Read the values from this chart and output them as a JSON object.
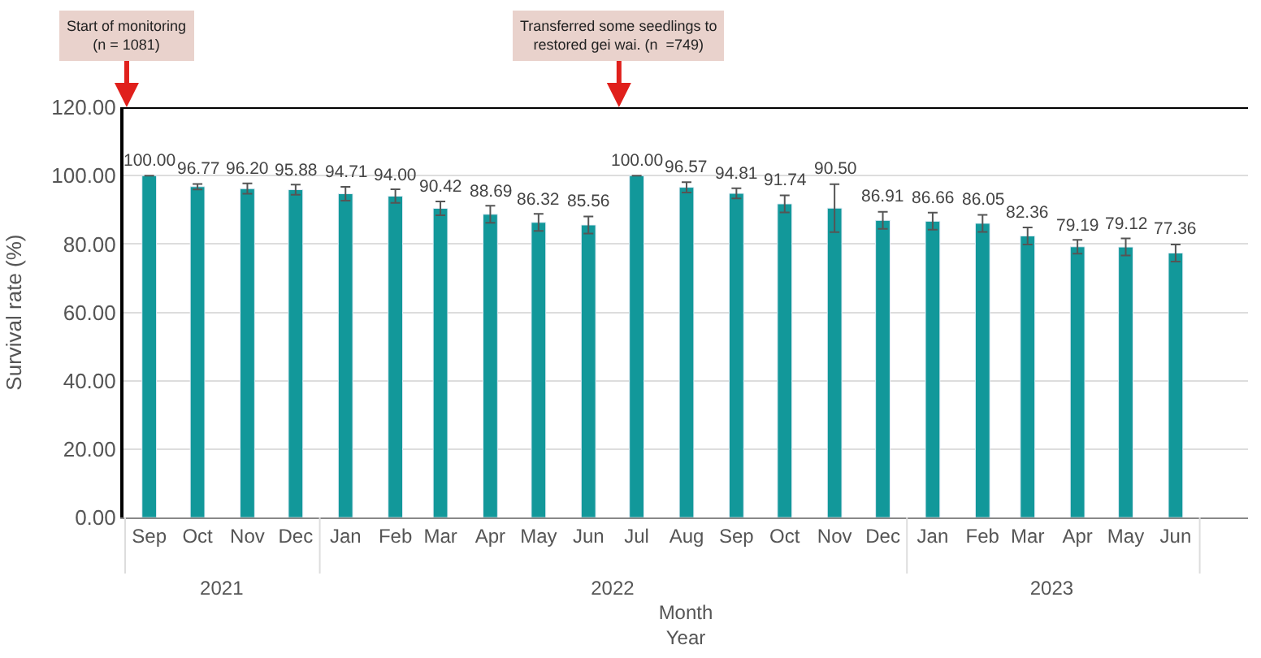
{
  "chart_data": {
    "type": "bar",
    "ylabel": "Survival rate (%)",
    "xlabel": "Month\nYear",
    "x": [
      "2021-09",
      "2021-10",
      "2021-11",
      "2021-12",
      "2022-01",
      "2022-02",
      "2022-03",
      "2022-04",
      "2022-05",
      "2022-06",
      "2022-07",
      "2022-08",
      "2022-09",
      "2022-10",
      "2022-11",
      "2022-12",
      "2023-01",
      "2023-02",
      "2023-03",
      "2023-04",
      "2023-05",
      "2023-06"
    ],
    "values": [
      100.0,
      96.77,
      96.2,
      95.88,
      94.71,
      94.0,
      90.42,
      88.69,
      86.32,
      85.56,
      100.0,
      96.57,
      94.81,
      91.74,
      90.5,
      86.91,
      86.66,
      86.05,
      82.36,
      79.19,
      79.12,
      77.36
    ],
    "value_labels": [
      "100.00",
      "96.77",
      "96.20",
      "95.88",
      "94.71",
      "94.00",
      "90.42",
      "88.69",
      "86.32",
      "85.56",
      "100.00",
      "96.57",
      "94.81",
      "91.74",
      "90.50",
      "86.91",
      "86.66",
      "86.05",
      "82.36",
      "79.19",
      "79.12",
      "77.36"
    ],
    "errors": [
      0,
      0.8,
      1.5,
      1.5,
      2,
      2,
      2,
      2.5,
      2.5,
      2.5,
      0,
      1.5,
      1.5,
      2.5,
      7,
      2.5,
      2.5,
      2.5,
      2.5,
      2,
      2.5,
      2.5
    ],
    "color": "#12989a",
    "xlim": [
      "2021-08-16",
      "2023-07-16"
    ],
    "xticks": [
      {
        "value": "2021-09",
        "label": "Sep"
      },
      {
        "value": "2021-10",
        "label": "Oct"
      },
      {
        "value": "2021-11",
        "label": "Nov"
      },
      {
        "value": "2021-12",
        "label": "Dec"
      },
      {
        "value": "2022-01",
        "label": "Jan"
      },
      {
        "value": "2022-02",
        "label": "Feb"
      },
      {
        "value": "2022-03",
        "label": "Mar"
      },
      {
        "value": "2022-04",
        "label": "Apr"
      },
      {
        "value": "2022-05",
        "label": "May"
      },
      {
        "value": "2022-06",
        "label": "Jun"
      },
      {
        "value": "2022-07",
        "label": "Jul"
      },
      {
        "value": "2022-08",
        "label": "Aug"
      },
      {
        "value": "2022-09",
        "label": "Sep"
      },
      {
        "value": "2022-10",
        "label": "Oct"
      },
      {
        "value": "2022-11",
        "label": "Nov"
      },
      {
        "value": "2022-12",
        "label": "Dec"
      },
      {
        "value": "2023-01",
        "label": "Jan"
      },
      {
        "value": "2023-02",
        "label": "Feb"
      },
      {
        "value": "2023-03",
        "label": "Mar"
      },
      {
        "value": "2023-04",
        "label": "Apr"
      },
      {
        "value": "2023-05",
        "label": "May"
      },
      {
        "value": "2023-06",
        "label": "Jun"
      }
    ],
    "x2lim": [
      "2021-08-16",
      "2023-07-16"
    ],
    "x2ticks": [
      {
        "value": "2021-10-16",
        "label": "2021"
      },
      {
        "value": "2022-06-16",
        "label": "2022"
      },
      {
        "value": "2023-03-16",
        "label": "2023"
      }
    ],
    "ylim": [
      0,
      120
    ],
    "yticks": [
      {
        "value": 0,
        "label": "0.00"
      },
      {
        "value": 20,
        "label": "20.00"
      },
      {
        "value": 40,
        "label": "40.00"
      },
      {
        "value": 60,
        "label": "60.00"
      },
      {
        "value": 80,
        "label": "80.00"
      },
      {
        "value": 100,
        "label": "100.00"
      },
      {
        "value": 120,
        "label": "120.00"
      }
    ],
    "grid": "y",
    "ref_lines": [
      {
        "axis": "x",
        "value": "2021-08-18",
        "label": "Start of monitoring\n(n = 1081)",
        "color": "#e0201c"
      },
      {
        "axis": "x",
        "value": "2022-06-20",
        "label": "Transferred some seedlings to\nrestored gei wai. (n  =749)",
        "color": "#e0201c"
      }
    ]
  }
}
